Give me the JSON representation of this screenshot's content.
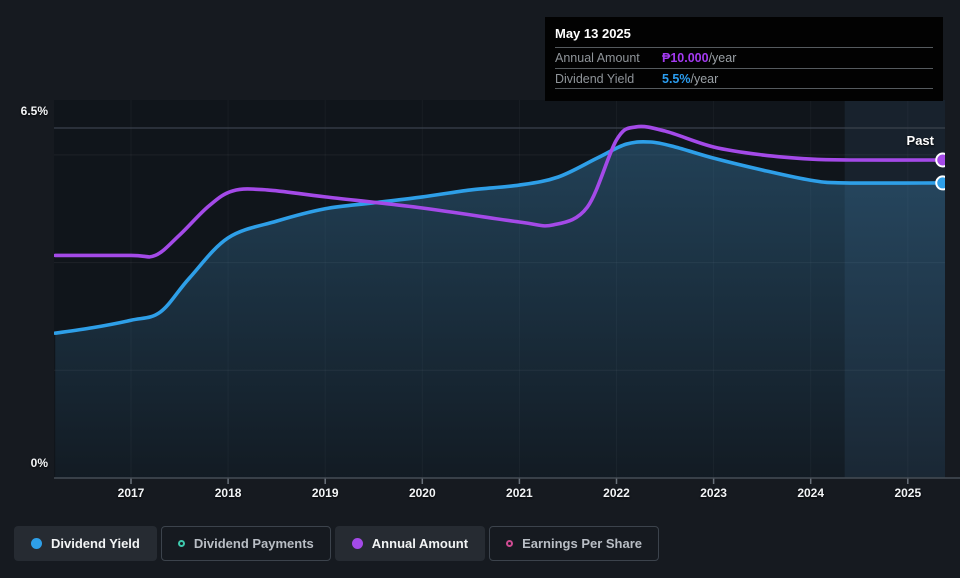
{
  "tooltip": {
    "date": "May 13 2025",
    "rows": [
      {
        "label": "Annual Amount",
        "value": "₱10.000",
        "suffix": "/year",
        "color": "#a43af2"
      },
      {
        "label": "Dividend Yield",
        "value": "5.5%",
        "suffix": "/year",
        "color": "#2b9df0"
      }
    ]
  },
  "chart": {
    "past_label": "Past",
    "y_axis": {
      "top_label": "6.5%",
      "bottom_label": "0%"
    },
    "x_ticks": [
      "2017",
      "2018",
      "2019",
      "2020",
      "2021",
      "2022",
      "2023",
      "2024",
      "2025"
    ]
  },
  "legend": [
    {
      "label": "Dividend Yield",
      "marker": "filled",
      "color": "#2e9fe8",
      "active": true
    },
    {
      "label": "Dividend Payments",
      "marker": "hollow",
      "color": "#3ec9ad",
      "active": false
    },
    {
      "label": "Annual Amount",
      "marker": "filled",
      "color": "#a44ae8",
      "active": true
    },
    {
      "label": "Earnings Per Share",
      "marker": "hollow",
      "color": "#cf4b92",
      "active": false
    }
  ],
  "chart_data": {
    "type": "line",
    "title": "Dividend history (past)",
    "x_range": [
      2016.22,
      2025.36
    ],
    "x_tick_years": [
      2017,
      2018,
      2019,
      2020,
      2021,
      2022,
      2023,
      2024,
      2025
    ],
    "grid_on": true,
    "legend_position": "bottom",
    "left_axis": {
      "label": "Dividend Yield",
      "unit": "%",
      "min": 0,
      "max": 6.5,
      "gridlines": [
        0,
        2,
        4,
        6,
        6.5
      ],
      "labeled_ticks": [
        "0%",
        "6.5%"
      ]
    },
    "hidden_axis": {
      "label": "Annual Amount",
      "unit": "₱/year",
      "min": 0,
      "max": 15.03
    },
    "past_band_start_year": 2024.35,
    "series": [
      {
        "name": "Dividend Yield",
        "unit": "%",
        "color": "#2e9fe8",
        "area": true,
        "end_value_label": "5.5%/year",
        "points": [
          [
            2016.22,
            2.69
          ],
          [
            2016.6,
            2.79
          ],
          [
            2017.0,
            2.93
          ],
          [
            2017.3,
            3.08
          ],
          [
            2017.6,
            3.71
          ],
          [
            2018.0,
            4.46
          ],
          [
            2018.5,
            4.77
          ],
          [
            2019.0,
            5.0
          ],
          [
            2019.5,
            5.11
          ],
          [
            2020.0,
            5.22
          ],
          [
            2020.5,
            5.35
          ],
          [
            2021.0,
            5.44
          ],
          [
            2021.4,
            5.59
          ],
          [
            2021.8,
            5.94
          ],
          [
            2022.1,
            6.2
          ],
          [
            2022.35,
            6.24
          ],
          [
            2022.6,
            6.15
          ],
          [
            2023.0,
            5.94
          ],
          [
            2023.5,
            5.72
          ],
          [
            2024.0,
            5.53
          ],
          [
            2024.35,
            5.48
          ],
          [
            2025.36,
            5.48
          ]
        ]
      },
      {
        "name": "Annual Amount",
        "unit": "₱/year",
        "color": "#a44ae8",
        "area": false,
        "end_value_label": "₱10.000/year",
        "points": [
          [
            2016.22,
            7.0
          ],
          [
            2017.0,
            7.0
          ],
          [
            2017.25,
            7.0
          ],
          [
            2017.5,
            7.64
          ],
          [
            2017.8,
            8.55
          ],
          [
            2018.05,
            9.03
          ],
          [
            2018.4,
            9.06
          ],
          [
            2019.0,
            8.84
          ],
          [
            2020.0,
            8.49
          ],
          [
            2021.0,
            8.05
          ],
          [
            2021.35,
            7.96
          ],
          [
            2021.7,
            8.52
          ],
          [
            2022.0,
            10.63
          ],
          [
            2022.2,
            11.04
          ],
          [
            2022.5,
            10.91
          ],
          [
            2023.0,
            10.41
          ],
          [
            2023.5,
            10.16
          ],
          [
            2024.0,
            10.03
          ],
          [
            2024.4,
            10.0
          ],
          [
            2025.36,
            10.0
          ]
        ]
      }
    ]
  },
  "colors": {
    "page_bg": "#161a20",
    "plot_bg": "#10151b",
    "past_band": "rgba(96,155,205,0.10)",
    "grid_major": "#3a424c",
    "grid_minor": "rgba(255,255,255,0.06)",
    "axis_line": "#454c55",
    "area_fill_top": "rgba(64,140,190,0.38)",
    "area_fill_bottom": "rgba(64,140,190,0.05)"
  }
}
